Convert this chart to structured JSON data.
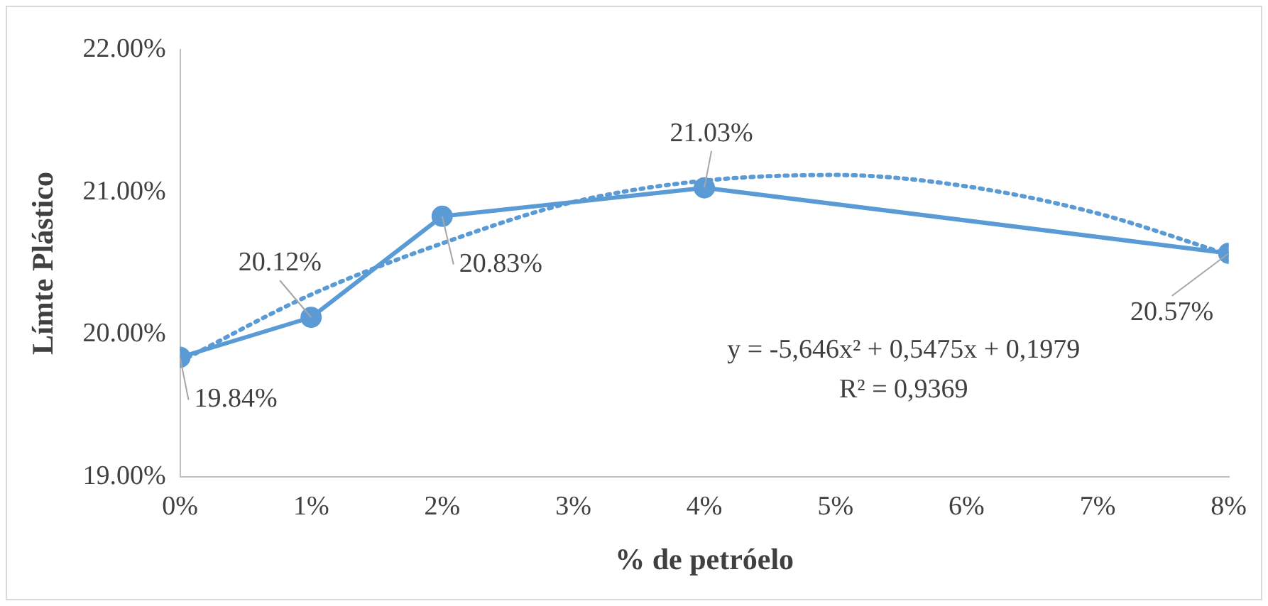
{
  "chart_data": {
    "type": "line",
    "xlabel": "% de petróelo",
    "ylabel": "Límte Plástico",
    "x": [
      0,
      1,
      2,
      4,
      8
    ],
    "series": [
      {
        "color": "#5b9bd5",
        "values": [
          19.84,
          20.12,
          20.83,
          21.03,
          20.57
        ],
        "value_labels": [
          "19.84%",
          "20.12%",
          "20.83%",
          "21.03%",
          "20.57%"
        ],
        "marker": "circle",
        "line_style": "solid"
      },
      {
        "color": "#5b9bd5",
        "x": [
          0,
          1,
          2,
          3,
          4,
          5,
          6,
          7,
          8
        ],
        "values": [
          19.81,
          20.28,
          20.64,
          20.93,
          21.08,
          21.12,
          21.04,
          20.85,
          20.56
        ],
        "marker": "none",
        "line_style": "dotted"
      }
    ],
    "xlim": [
      0,
      8
    ],
    "xticks": [
      {
        "value": 0,
        "label": "0%"
      },
      {
        "value": 1,
        "label": "1%"
      },
      {
        "value": 2,
        "label": "2%"
      },
      {
        "value": 3,
        "label": "3%"
      },
      {
        "value": 4,
        "label": "4%"
      },
      {
        "value": 5,
        "label": "5%"
      },
      {
        "value": 6,
        "label": "6%"
      },
      {
        "value": 7,
        "label": "7%"
      },
      {
        "value": 8,
        "label": "8%"
      }
    ],
    "ylim": [
      19,
      22
    ],
    "yticks": [
      {
        "value": 19,
        "label": "19.00%"
      },
      {
        "value": 20,
        "label": "20.00%"
      },
      {
        "value": 21,
        "label": "21.00%"
      },
      {
        "value": 22,
        "label": "22.00%"
      }
    ],
    "grid": false,
    "legend": false,
    "annotations": [
      "y = -5,646x² + 0,5475x + 0,1979",
      "R² = 0,9369"
    ]
  }
}
